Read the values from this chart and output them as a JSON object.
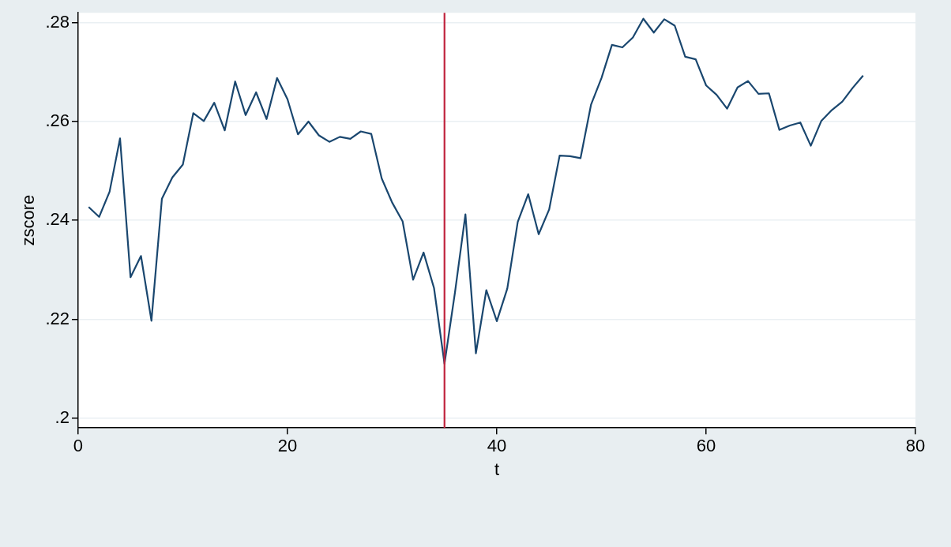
{
  "chart_data": {
    "type": "line",
    "xlabel": "t",
    "ylabel": "zscore",
    "x": [
      1,
      2,
      3,
      4,
      5,
      6,
      7,
      8,
      9,
      10,
      11,
      12,
      13,
      14,
      15,
      16,
      17,
      18,
      19,
      20,
      21,
      22,
      23,
      24,
      25,
      26,
      27,
      28,
      29,
      30,
      31,
      32,
      33,
      34,
      35,
      36,
      37,
      38,
      39,
      40,
      41,
      42,
      43,
      44,
      45,
      46,
      47,
      48,
      49,
      50,
      51,
      52,
      53,
      54,
      55,
      56,
      57,
      58,
      59,
      60,
      61,
      62,
      63,
      64,
      65,
      66,
      67,
      68,
      69,
      70,
      71,
      72,
      73,
      74,
      75
    ],
    "series": [
      {
        "color": "#1a476f",
        "values": [
          0.2427,
          0.2407,
          0.2458,
          0.2566,
          0.2285,
          0.2328,
          0.2197,
          0.2444,
          0.2487,
          0.2513,
          0.2617,
          0.2601,
          0.2638,
          0.2582,
          0.2681,
          0.2613,
          0.2659,
          0.2605,
          0.2688,
          0.2645,
          0.2574,
          0.26,
          0.2572,
          0.2559,
          0.2569,
          0.2565,
          0.258,
          0.2575,
          0.2485,
          0.2436,
          0.2398,
          0.228,
          0.2335,
          0.2263,
          0.211,
          0.2254,
          0.2412,
          0.2131,
          0.2259,
          0.2196,
          0.2262,
          0.2397,
          0.2453,
          0.2372,
          0.2422,
          0.2531,
          0.253,
          0.2526,
          0.2634,
          0.2688,
          0.2755,
          0.275,
          0.277,
          0.2808,
          0.278,
          0.2807,
          0.2794,
          0.2731,
          0.2726,
          0.2673,
          0.2654,
          0.2626,
          0.2669,
          0.2682,
          0.2656,
          0.2657,
          0.2583,
          0.2592,
          0.2598,
          0.2551,
          0.2601,
          0.2623,
          0.264,
          0.2668,
          0.2693
        ]
      }
    ],
    "xlim": [
      0,
      80
    ],
    "xticks": [
      0,
      20,
      40,
      60,
      80
    ],
    "ylim": [
      0.198,
      0.282
    ],
    "yticks": [
      {
        "value": 0.2,
        "label": ".2"
      },
      {
        "value": 0.22,
        "label": ".22"
      },
      {
        "value": 0.24,
        "label": ".24"
      },
      {
        "value": 0.26,
        "label": ".26"
      },
      {
        "value": 0.28,
        "label": ".28"
      }
    ],
    "ref_lines": [
      {
        "axis": "x",
        "value": 35,
        "color": "#c0233d"
      }
    ],
    "grid": "y",
    "legend": false,
    "marker": "none",
    "line_style": "solid"
  }
}
